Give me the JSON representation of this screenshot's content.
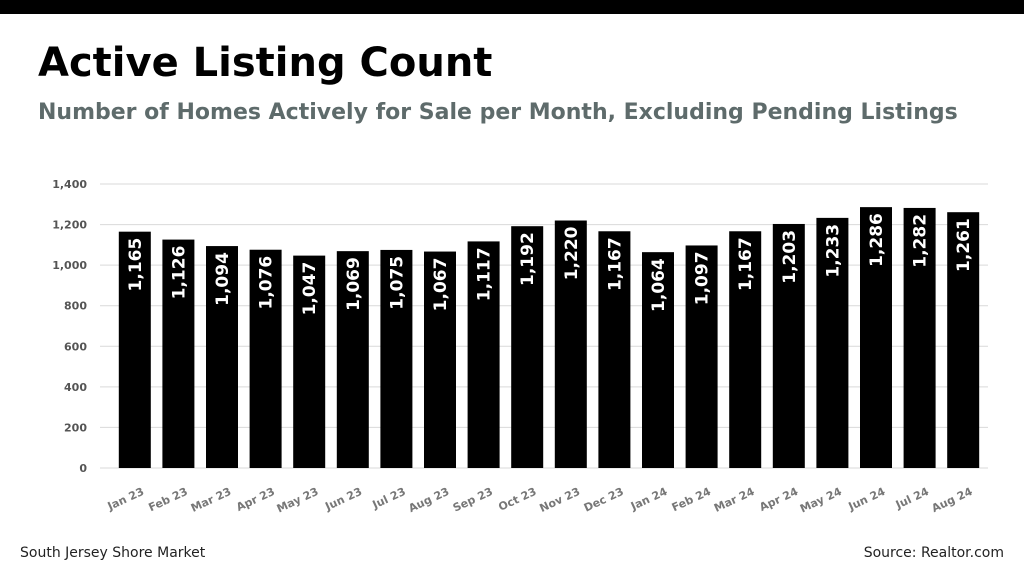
{
  "chart_data": {
    "type": "bar",
    "title": "Active Listing Count",
    "subtitle": "Number of Homes Actively for Sale per Month, Excluding Pending Listings",
    "categories": [
      "Jan 23",
      "Feb 23",
      "Mar 23",
      "Apr 23",
      "May 23",
      "Jun 23",
      "Jul 23",
      "Aug 23",
      "Sep 23",
      "Oct 23",
      "Nov 23",
      "Dec 23",
      "Jan 24",
      "Feb 24",
      "Mar 24",
      "Apr 24",
      "May 24",
      "Jun 24",
      "Jul 24",
      "Aug 24"
    ],
    "values": [
      1165,
      1126,
      1094,
      1076,
      1047,
      1069,
      1075,
      1067,
      1117,
      1192,
      1220,
      1167,
      1064,
      1097,
      1167,
      1203,
      1233,
      1286,
      1282,
      1261
    ],
    "value_labels": [
      "1,165",
      "1,126",
      "1,094",
      "1,076",
      "1,047",
      "1,069",
      "1,075",
      "1,067",
      "1,117",
      "1,192",
      "1,220",
      "1,167",
      "1,064",
      "1,097",
      "1,167",
      "1,203",
      "1,233",
      "1,286",
      "1,282",
      "1,261"
    ],
    "color": "#000000",
    "ylim": [
      0,
      1400
    ],
    "yticks": [
      0,
      200,
      400,
      600,
      800,
      {
        "value": 1000,
        "label": "1,000"
      },
      {
        "value": 1200,
        "label": "1,200"
      },
      {
        "value": 1400,
        "label": "1,400"
      }
    ],
    "grid": true,
    "footer_left": "South Jersey Shore Market",
    "footer_right": "Source: Realtor.com"
  }
}
